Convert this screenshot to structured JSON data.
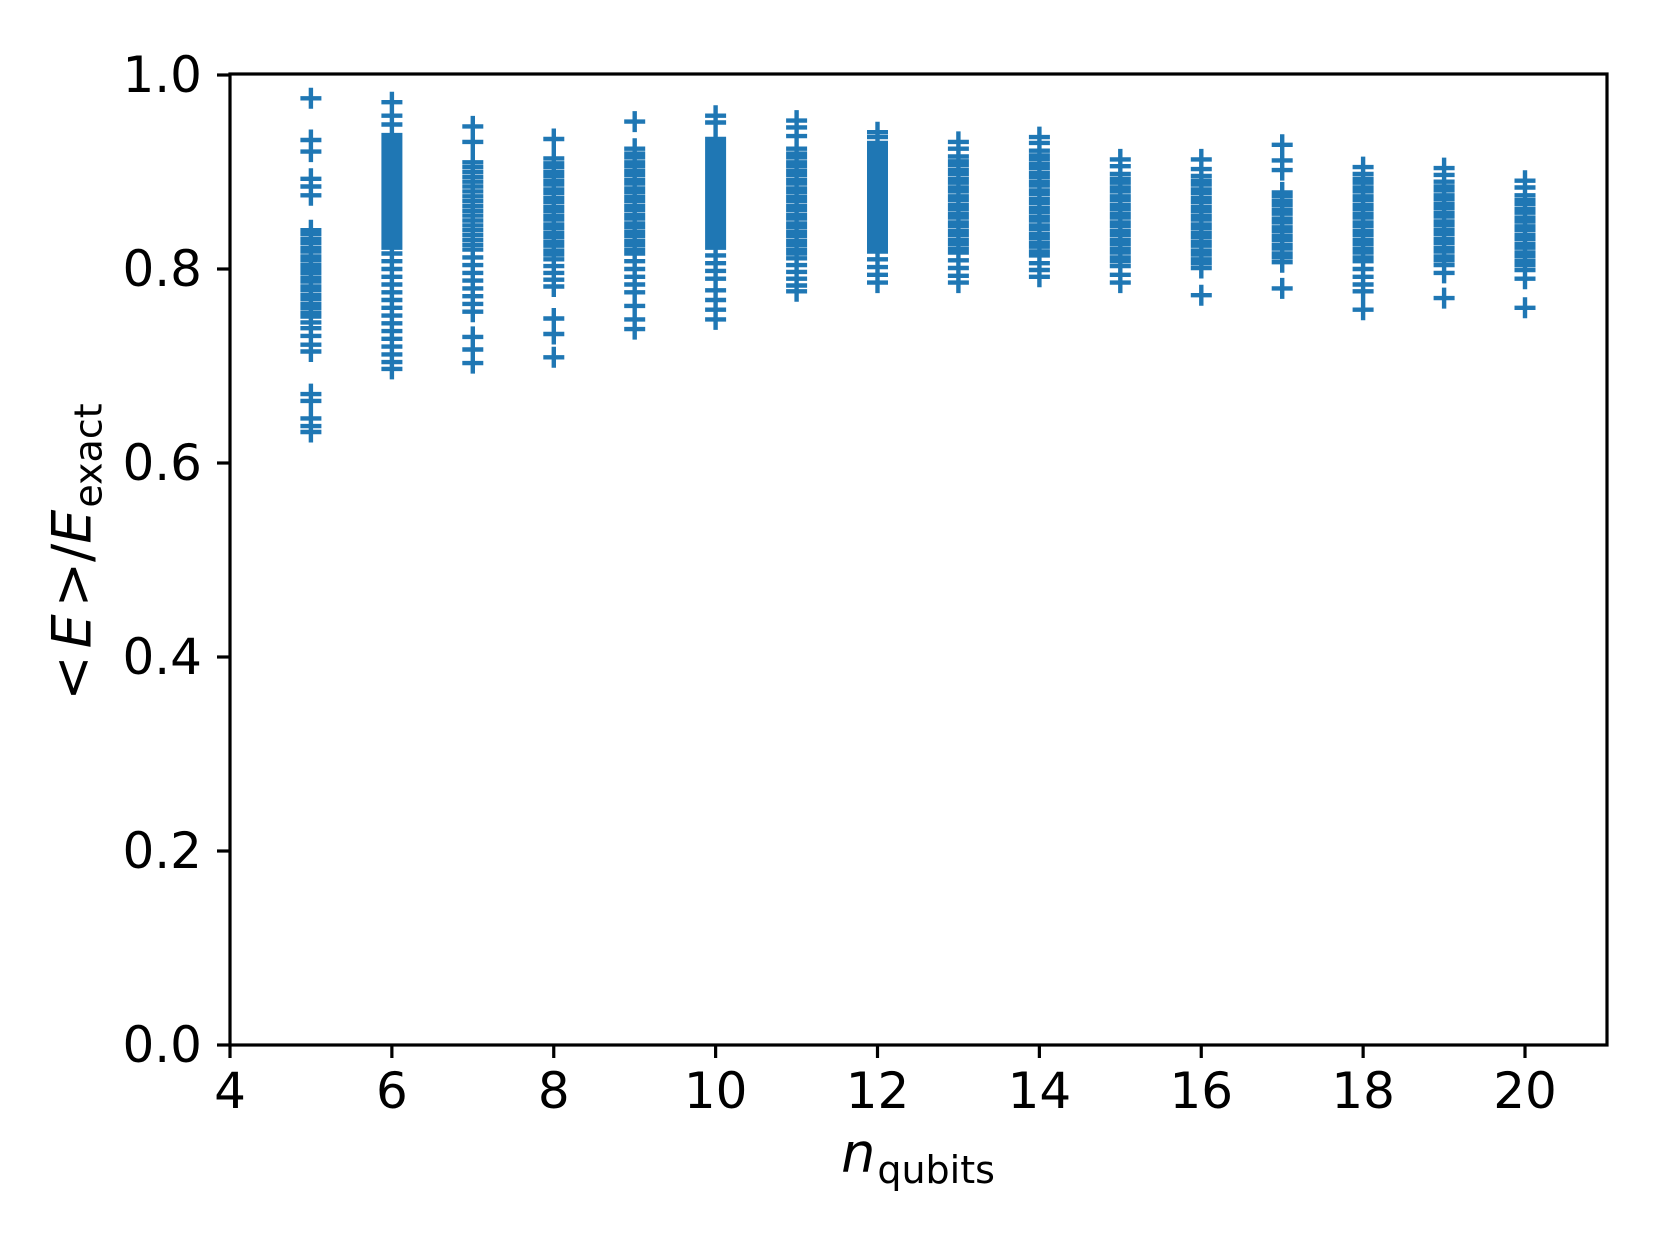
{
  "figure": {
    "background_color": "#ffffff",
    "axis_color": "#000000"
  },
  "chart_data": {
    "type": "scatter",
    "title": "",
    "marker": "+",
    "marker_color": "#1f77b4",
    "grid": false,
    "legend": null,
    "xlabel": {
      "main": "n",
      "sub": "qubits"
    },
    "ylabel": {
      "open": "<",
      "numerator": "E",
      "close": ">",
      "slash": "/",
      "denominator": "E",
      "sub": "exact"
    },
    "xlim": [
      4,
      21
    ],
    "ylim": [
      0.0,
      1.0
    ],
    "x_ticks": [
      4,
      6,
      8,
      10,
      12,
      14,
      16,
      18,
      20
    ],
    "x_tick_labels": [
      "4",
      "6",
      "8",
      "10",
      "12",
      "14",
      "16",
      "18",
      "20"
    ],
    "y_ticks": [
      0.0,
      0.2,
      0.4,
      0.6,
      0.8,
      1.0
    ],
    "y_tick_labels": [
      "0.0",
      "0.2",
      "0.4",
      "0.6",
      "0.8",
      "1.0"
    ],
    "series": [
      {
        "n_qubits": 5,
        "values": [
          0.976,
          0.933,
          0.921,
          0.893,
          0.885,
          0.876,
          0.84,
          0.836,
          0.831,
          0.827,
          0.822,
          0.818,
          0.813,
          0.809,
          0.804,
          0.8,
          0.796,
          0.791,
          0.787,
          0.782,
          0.778,
          0.773,
          0.769,
          0.764,
          0.76,
          0.755,
          0.751,
          0.745,
          0.739,
          0.731,
          0.722,
          0.715,
          0.671,
          0.664,
          0.646,
          0.638,
          0.632
        ]
      },
      {
        "n_qubits": 6,
        "values": [
          0.972,
          0.958,
          0.949,
          0.938,
          0.934,
          0.93,
          0.926,
          0.922,
          0.918,
          0.914,
          0.91,
          0.906,
          0.902,
          0.898,
          0.894,
          0.89,
          0.886,
          0.882,
          0.878,
          0.874,
          0.87,
          0.866,
          0.862,
          0.858,
          0.854,
          0.85,
          0.846,
          0.842,
          0.838,
          0.834,
          0.83,
          0.826,
          0.822,
          0.816,
          0.808,
          0.8,
          0.792,
          0.784,
          0.776,
          0.768,
          0.76,
          0.752,
          0.744,
          0.736,
          0.728,
          0.72,
          0.712,
          0.704,
          0.697
        ]
      },
      {
        "n_qubits": 7,
        "values": [
          0.947,
          0.931,
          0.91,
          0.905,
          0.9,
          0.895,
          0.89,
          0.885,
          0.88,
          0.875,
          0.87,
          0.865,
          0.86,
          0.855,
          0.85,
          0.845,
          0.84,
          0.835,
          0.83,
          0.825,
          0.82,
          0.812,
          0.804,
          0.796,
          0.788,
          0.78,
          0.772,
          0.764,
          0.756,
          0.73,
          0.717,
          0.703
        ]
      },
      {
        "n_qubits": 8,
        "values": [
          0.934,
          0.914,
          0.909,
          0.905,
          0.9,
          0.896,
          0.891,
          0.887,
          0.882,
          0.878,
          0.873,
          0.869,
          0.864,
          0.86,
          0.855,
          0.851,
          0.846,
          0.842,
          0.837,
          0.833,
          0.828,
          0.824,
          0.819,
          0.815,
          0.81,
          0.803,
          0.796,
          0.789,
          0.782,
          0.749,
          0.733,
          0.709
        ]
      },
      {
        "n_qubits": 9,
        "values": [
          0.952,
          0.924,
          0.919,
          0.915,
          0.91,
          0.906,
          0.901,
          0.897,
          0.892,
          0.888,
          0.883,
          0.879,
          0.874,
          0.87,
          0.865,
          0.861,
          0.856,
          0.852,
          0.847,
          0.843,
          0.838,
          0.834,
          0.829,
          0.825,
          0.82,
          0.816,
          0.808,
          0.8,
          0.792,
          0.784,
          0.776,
          0.762,
          0.748,
          0.738
        ]
      },
      {
        "n_qubits": 10,
        "values": [
          0.958,
          0.951,
          0.934,
          0.93,
          0.926,
          0.922,
          0.918,
          0.914,
          0.91,
          0.906,
          0.902,
          0.898,
          0.894,
          0.89,
          0.886,
          0.882,
          0.878,
          0.874,
          0.87,
          0.866,
          0.862,
          0.858,
          0.854,
          0.85,
          0.846,
          0.842,
          0.838,
          0.834,
          0.83,
          0.826,
          0.822,
          0.814,
          0.806,
          0.798,
          0.79,
          0.778,
          0.768,
          0.758,
          0.748
        ]
      },
      {
        "n_qubits": 11,
        "values": [
          0.953,
          0.946,
          0.937,
          0.924,
          0.919,
          0.915,
          0.91,
          0.906,
          0.901,
          0.897,
          0.892,
          0.888,
          0.883,
          0.879,
          0.874,
          0.87,
          0.865,
          0.861,
          0.856,
          0.852,
          0.847,
          0.843,
          0.838,
          0.834,
          0.829,
          0.825,
          0.82,
          0.816,
          0.811,
          0.804,
          0.797,
          0.79,
          0.783,
          0.777
        ]
      },
      {
        "n_qubits": 12,
        "values": [
          0.941,
          0.936,
          0.93,
          0.926,
          0.922,
          0.918,
          0.914,
          0.91,
          0.906,
          0.902,
          0.898,
          0.894,
          0.89,
          0.886,
          0.882,
          0.878,
          0.874,
          0.87,
          0.866,
          0.862,
          0.858,
          0.854,
          0.85,
          0.846,
          0.842,
          0.838,
          0.834,
          0.83,
          0.826,
          0.822,
          0.818,
          0.81,
          0.802,
          0.794,
          0.786
        ]
      },
      {
        "n_qubits": 13,
        "values": [
          0.931,
          0.924,
          0.916,
          0.911,
          0.907,
          0.902,
          0.898,
          0.893,
          0.889,
          0.884,
          0.88,
          0.875,
          0.871,
          0.866,
          0.862,
          0.857,
          0.853,
          0.848,
          0.844,
          0.839,
          0.835,
          0.83,
          0.826,
          0.821,
          0.817,
          0.809,
          0.801,
          0.793,
          0.786
        ]
      },
      {
        "n_qubits": 14,
        "values": [
          0.936,
          0.93,
          0.922,
          0.917,
          0.913,
          0.908,
          0.904,
          0.899,
          0.895,
          0.89,
          0.886,
          0.881,
          0.877,
          0.872,
          0.868,
          0.863,
          0.859,
          0.854,
          0.85,
          0.845,
          0.841,
          0.836,
          0.832,
          0.827,
          0.823,
          0.818,
          0.814,
          0.806,
          0.799,
          0.792
        ]
      },
      {
        "n_qubits": 15,
        "values": [
          0.913,
          0.906,
          0.898,
          0.893,
          0.889,
          0.884,
          0.88,
          0.875,
          0.871,
          0.866,
          0.862,
          0.857,
          0.853,
          0.848,
          0.844,
          0.839,
          0.835,
          0.83,
          0.826,
          0.821,
          0.817,
          0.812,
          0.808,
          0.803,
          0.794,
          0.786
        ]
      },
      {
        "n_qubits": 16,
        "values": [
          0.913,
          0.903,
          0.896,
          0.891,
          0.887,
          0.882,
          0.878,
          0.873,
          0.869,
          0.864,
          0.86,
          0.855,
          0.851,
          0.846,
          0.842,
          0.837,
          0.833,
          0.828,
          0.824,
          0.819,
          0.815,
          0.81,
          0.806,
          0.801,
          0.773
        ]
      },
      {
        "n_qubits": 17,
        "values": [
          0.928,
          0.912,
          0.902,
          0.879,
          0.875,
          0.87,
          0.866,
          0.861,
          0.857,
          0.852,
          0.848,
          0.843,
          0.839,
          0.834,
          0.83,
          0.825,
          0.821,
          0.816,
          0.812,
          0.807,
          0.78
        ]
      },
      {
        "n_qubits": 18,
        "values": [
          0.905,
          0.898,
          0.893,
          0.889,
          0.884,
          0.88,
          0.875,
          0.871,
          0.866,
          0.862,
          0.857,
          0.853,
          0.848,
          0.844,
          0.839,
          0.835,
          0.83,
          0.826,
          0.821,
          0.817,
          0.812,
          0.808,
          0.8,
          0.792,
          0.784,
          0.777,
          0.758
        ]
      },
      {
        "n_qubits": 19,
        "values": [
          0.904,
          0.897,
          0.89,
          0.885,
          0.881,
          0.876,
          0.872,
          0.867,
          0.863,
          0.858,
          0.854,
          0.849,
          0.845,
          0.84,
          0.836,
          0.831,
          0.827,
          0.822,
          0.818,
          0.813,
          0.809,
          0.804,
          0.796,
          0.77
        ]
      },
      {
        "n_qubits": 20,
        "values": [
          0.891,
          0.884,
          0.876,
          0.871,
          0.867,
          0.862,
          0.858,
          0.853,
          0.849,
          0.844,
          0.84,
          0.835,
          0.831,
          0.826,
          0.822,
          0.817,
          0.813,
          0.808,
          0.804,
          0.799,
          0.79,
          0.76
        ]
      }
    ]
  }
}
